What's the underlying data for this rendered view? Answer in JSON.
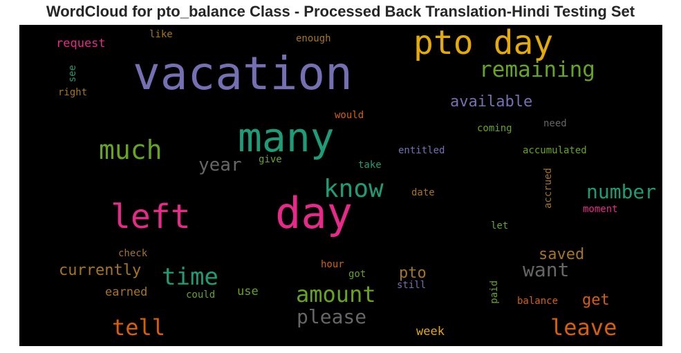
{
  "title": "WordCloud for pto_balance Class - Processed Back Translation-Hindi Testing Set",
  "words": {
    "vacation": {
      "text": "vacation",
      "color": "#7570b3"
    },
    "pto_day": {
      "text": "pto day",
      "color": "#e6ab02"
    },
    "remaining": {
      "text": "remaining",
      "color": "#66a61e"
    },
    "many": {
      "text": "many",
      "color": "#1b9e77"
    },
    "day": {
      "text": "day",
      "color": "#e7298a"
    },
    "left": {
      "text": "left",
      "color": "#e7298a"
    },
    "much": {
      "text": "much",
      "color": "#66a61e"
    },
    "know": {
      "text": "know",
      "color": "#1b9e77"
    },
    "number": {
      "text": "number",
      "color": "#1b9e77"
    },
    "year": {
      "text": "year",
      "color": "#666666"
    },
    "time": {
      "text": "time",
      "color": "#1b9e77"
    },
    "amount": {
      "text": "amount",
      "color": "#66a61e"
    },
    "please": {
      "text": "please",
      "color": "#666666"
    },
    "tell": {
      "text": "tell",
      "color": "#d95f02"
    },
    "leave": {
      "text": "leave",
      "color": "#d95f02"
    },
    "want": {
      "text": "want",
      "color": "#666666"
    },
    "saved": {
      "text": "saved",
      "color": "#a6761d"
    },
    "pto": {
      "text": "pto",
      "color": "#a6761d"
    },
    "currently": {
      "text": "currently",
      "color": "#a6761d"
    },
    "available": {
      "text": "available",
      "color": "#7570b3"
    },
    "get": {
      "text": "get",
      "color": "#d95f02"
    },
    "request": {
      "text": "request",
      "color": "#e7298a"
    },
    "earned": {
      "text": "earned",
      "color": "#a6761d"
    },
    "like": {
      "text": "like",
      "color": "#a6761d"
    },
    "enough": {
      "text": "enough",
      "color": "#a6761d"
    },
    "see": {
      "text": "see",
      "color": "#1b9e77"
    },
    "right": {
      "text": "right",
      "color": "#a6761d"
    },
    "would": {
      "text": "would",
      "color": "#d95f02"
    },
    "coming": {
      "text": "coming",
      "color": "#66a61e"
    },
    "need": {
      "text": "need",
      "color": "#666666"
    },
    "entitled": {
      "text": "entitled",
      "color": "#7570b3"
    },
    "accumulated": {
      "text": "accumulated",
      "color": "#66a61e"
    },
    "give": {
      "text": "give",
      "color": "#66a61e"
    },
    "take": {
      "text": "take",
      "color": "#1b9e77"
    },
    "date": {
      "text": "date",
      "color": "#a6761d"
    },
    "accrued": {
      "text": "accrued",
      "color": "#a6761d"
    },
    "moment": {
      "text": "moment",
      "color": "#e7298a"
    },
    "let": {
      "text": "let",
      "color": "#66a61e"
    },
    "check": {
      "text": "check",
      "color": "#a6761d"
    },
    "hour": {
      "text": "hour",
      "color": "#d95f02"
    },
    "got": {
      "text": "got",
      "color": "#66a61e"
    },
    "still": {
      "text": "still",
      "color": "#7570b3"
    },
    "use": {
      "text": "use",
      "color": "#66a61e"
    },
    "could": {
      "text": "could",
      "color": "#66a61e"
    },
    "paid": {
      "text": "paid",
      "color": "#66a61e"
    },
    "balance": {
      "text": "balance",
      "color": "#d95f02"
    },
    "week": {
      "text": "week",
      "color": "#e6ab02"
    }
  }
}
